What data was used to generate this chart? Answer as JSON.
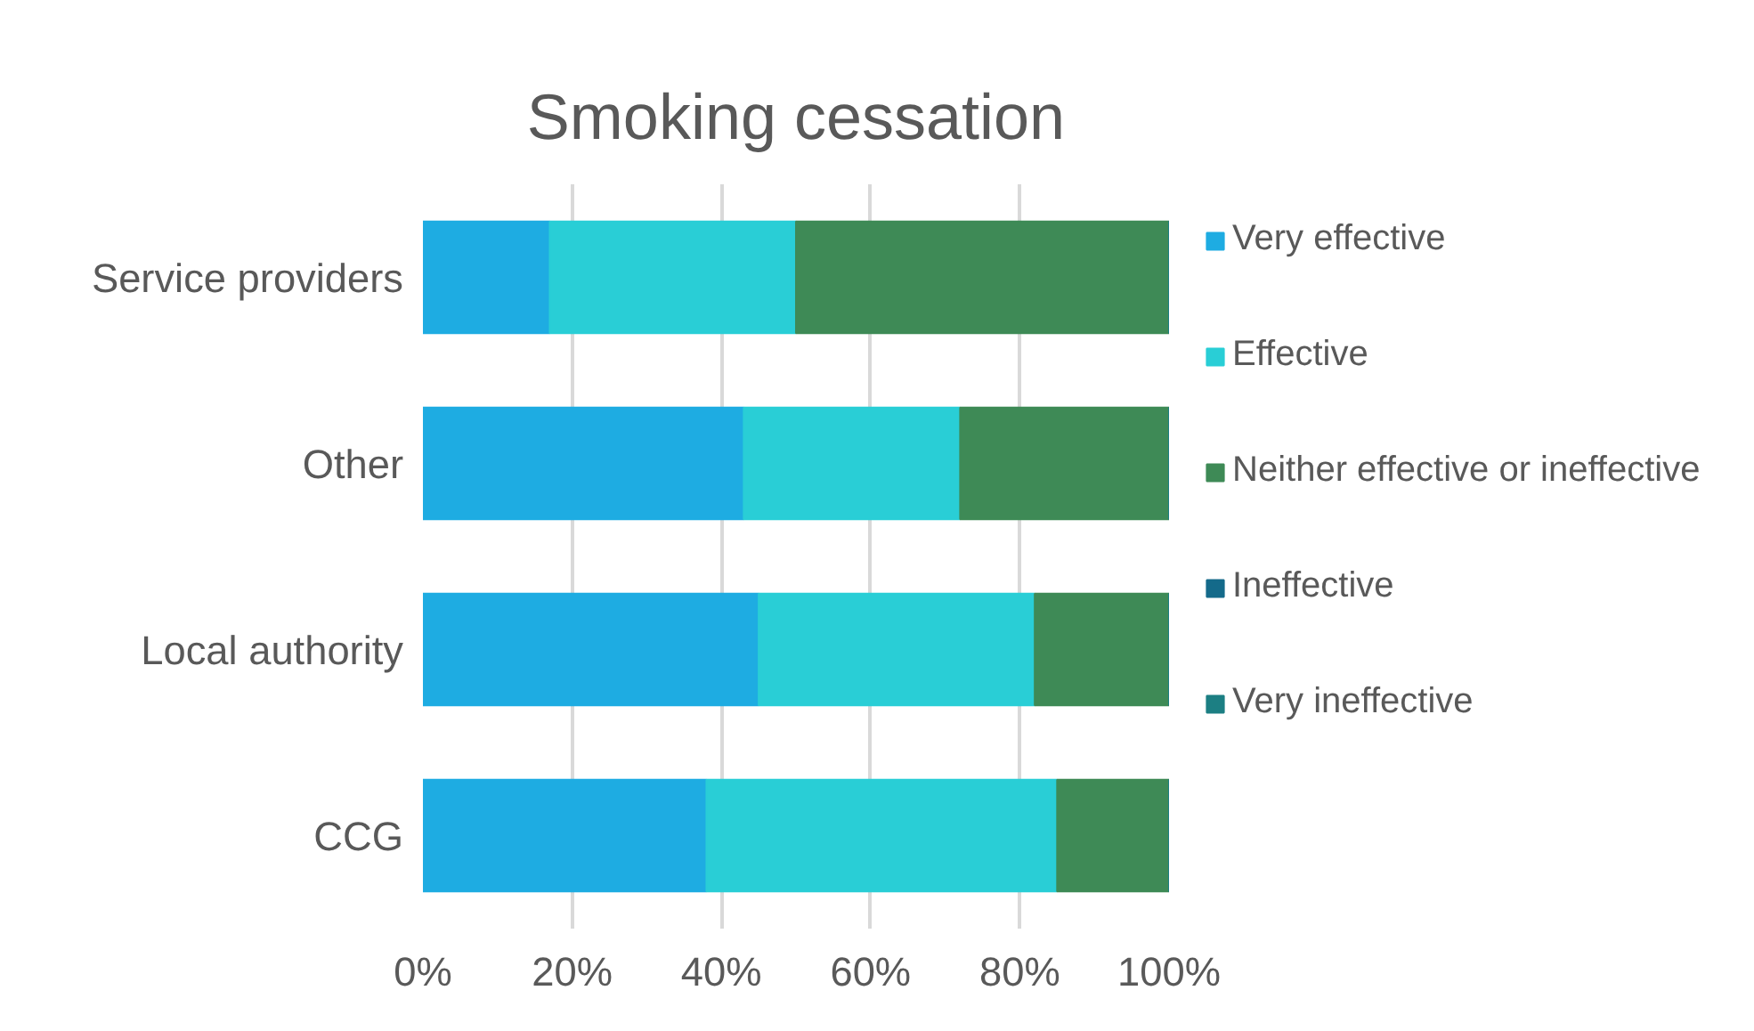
{
  "chart_data": {
    "type": "bar",
    "orientation": "horizontal",
    "stacked": true,
    "title": "Smoking cessation",
    "categories": [
      "Service providers",
      "Other",
      "Local authority",
      "CCG"
    ],
    "series": [
      {
        "name": "Very effective",
        "color": "#1eace2",
        "values": [
          17,
          43,
          45,
          38
        ]
      },
      {
        "name": "Effective",
        "color": "#29ced6",
        "values": [
          33,
          29,
          37,
          47
        ]
      },
      {
        "name": "Neither effective or ineffective",
        "color": "#3e8a56",
        "values": [
          50,
          28,
          18,
          15
        ]
      },
      {
        "name": "Ineffective",
        "color": "#146a8a",
        "values": [
          0,
          0,
          0,
          0
        ]
      },
      {
        "name": "Very ineffective",
        "color": "#1c7f83",
        "values": [
          0,
          0,
          0,
          0
        ]
      }
    ],
    "xlim": [
      0,
      100
    ],
    "xticks": [
      {
        "value": 0,
        "label": "0%"
      },
      {
        "value": 20,
        "label": "20%"
      },
      {
        "value": 40,
        "label": "40%"
      },
      {
        "value": 60,
        "label": "60%"
      },
      {
        "value": 80,
        "label": "80%"
      },
      {
        "value": 100,
        "label": "100%"
      }
    ],
    "grid": "x",
    "legend": "right"
  }
}
